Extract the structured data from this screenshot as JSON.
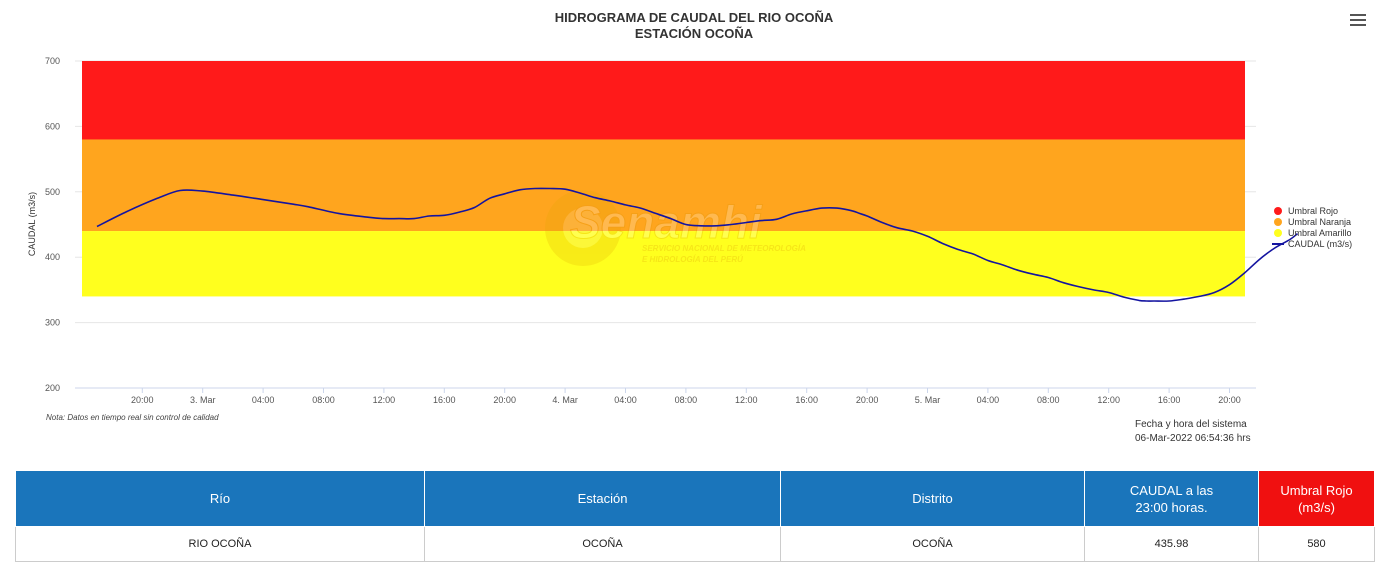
{
  "chart_data": {
    "type": "line",
    "title": "HIDROGRAMA DE CAUDAL DEL RIO OCOÑA",
    "subtitle": "ESTACIÓN OCOÑA",
    "ylabel": "CAUDAL (m3/s)",
    "ylim": [
      200,
      700
    ],
    "y_ticks": [
      200,
      300,
      400,
      500,
      600,
      700
    ],
    "x_start_hour": 17,
    "x_end_hour": 71.5,
    "x_ticks": [
      {
        "hour": 20,
        "label": "20:00"
      },
      {
        "hour": 24,
        "label": "3. Mar"
      },
      {
        "hour": 28,
        "label": "04:00"
      },
      {
        "hour": 32,
        "label": "08:00"
      },
      {
        "hour": 36,
        "label": "12:00"
      },
      {
        "hour": 40,
        "label": "16:00"
      },
      {
        "hour": 44,
        "label": "20:00"
      },
      {
        "hour": 48,
        "label": "4. Mar"
      },
      {
        "hour": 52,
        "label": "04:00"
      },
      {
        "hour": 56,
        "label": "08:00"
      },
      {
        "hour": 60,
        "label": "12:00"
      },
      {
        "hour": 64,
        "label": "16:00"
      },
      {
        "hour": 68,
        "label": "20:00"
      },
      {
        "hour": 72,
        "label": "5. Mar"
      },
      {
        "hour": 76,
        "label": "04:00"
      },
      {
        "hour": 80,
        "label": "08:00"
      },
      {
        "hour": 84,
        "label": "12:00"
      },
      {
        "hour": 88,
        "label": "16:00"
      },
      {
        "hour": 92,
        "label": "20:00"
      }
    ],
    "bands": [
      {
        "name": "Umbral Rojo",
        "from": 580,
        "to": 700,
        "color": "#ff1a1a"
      },
      {
        "name": "Umbral Naranja",
        "from": 440,
        "to": 580,
        "color": "#ffa51e"
      },
      {
        "name": "Umbral Amarillo",
        "from": 340,
        "to": 440,
        "color": "#ffff1e"
      }
    ],
    "series": [
      {
        "name": "CAUDAL (m3/s)",
        "color": "#1414a0",
        "x_hours": [
          17,
          19,
          21,
          22.5,
          24,
          26,
          28,
          30,
          31,
          33,
          35,
          36,
          37,
          38,
          39,
          40,
          41,
          42,
          43,
          44,
          45,
          46,
          47,
          48,
          49,
          50,
          51,
          52,
          53,
          54,
          55,
          56,
          57,
          58,
          59,
          60,
          61,
          62,
          63,
          64,
          65,
          66,
          67,
          67.5,
          68,
          69,
          70,
          71,
          72,
          73,
          74,
          75,
          76,
          77,
          78,
          79,
          80,
          81,
          82,
          83,
          84,
          85,
          86,
          86.5,
          87,
          88,
          89,
          90,
          91,
          92,
          93,
          94,
          95,
          96,
          96.5
        ],
        "y_values": [
          447,
          470,
          490,
          502,
          501,
          495,
          488,
          481,
          477,
          467,
          461,
          459,
          459,
          459,
          463,
          464,
          469,
          476,
          490,
          497,
          503,
          505,
          505,
          504,
          498,
          491,
          486,
          480,
          475,
          467,
          459,
          450,
          448,
          448,
          450,
          453,
          456,
          458,
          466,
          471,
          475,
          475,
          471,
          467,
          463,
          453,
          445,
          440,
          432,
          421,
          412,
          405,
          395,
          388,
          380,
          374,
          369,
          361,
          355,
          350,
          346,
          339,
          334,
          333,
          333,
          333,
          336,
          340,
          346,
          358,
          376,
          397,
          414,
          427,
          436
        ]
      }
    ],
    "legend": "right"
  },
  "ui": {
    "watermark_name": "Senamhi",
    "watermark_line1": "SERVICIO NACIONAL DE METEOROLOGÍA",
    "watermark_line2": "E HIDROLOGÍA DEL PERÚ",
    "note": "Nota: Datos en tiempo real sin control de calidad",
    "system_label": "Fecha y hora del sistema",
    "system_datetime": "06-Mar-2022 06:54:36 hrs",
    "menu_icon": "hamburger-menu-icon"
  },
  "table": {
    "headers": {
      "rio": "Río",
      "estacion": "Estación",
      "distrito": "Distrito",
      "caudal_line1": "CAUDAL a las",
      "caudal_line2": "23:00 horas.",
      "umbral": "Umbral Rojo (m3/s)"
    },
    "row": {
      "rio": "RIO OCOÑA",
      "estacion": "OCOÑA",
      "distrito": "OCOÑA",
      "caudal": "435.98",
      "umbral": "580"
    }
  }
}
